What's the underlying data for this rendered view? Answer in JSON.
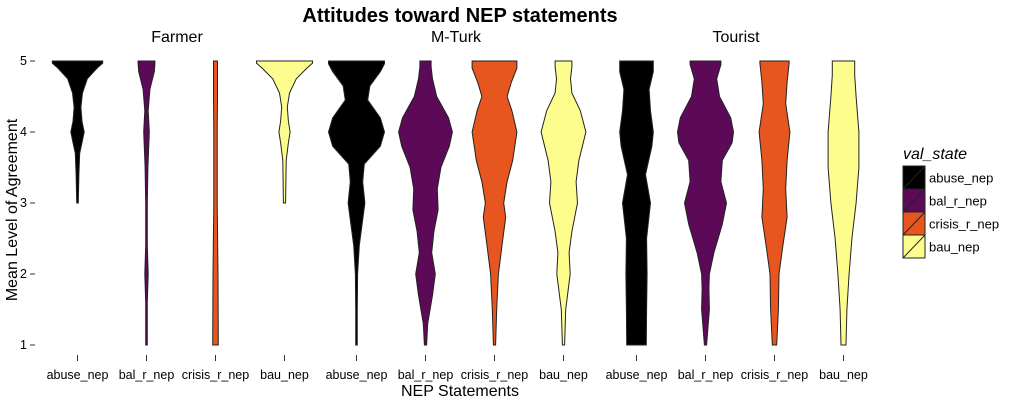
{
  "chart_data": {
    "type": "violin",
    "title": "Attitudes toward NEP statements",
    "xlabel": "NEP Statements",
    "ylabel": "Mean Level of Agreement",
    "ylim": [
      1,
      5
    ],
    "yticks": [
      "1",
      "2",
      "3",
      "4",
      "5"
    ],
    "categories": [
      "abuse_nep",
      "bal_r_nep",
      "crisis_r_nep",
      "bau_nep"
    ],
    "legend": {
      "title": "val_state",
      "position": "right",
      "items": [
        {
          "label": "abuse_nep",
          "color": "#000000"
        },
        {
          "label": "bal_r_nep",
          "color": "#5c0a57"
        },
        {
          "label": "crisis_r_nep",
          "color": "#e8561f"
        },
        {
          "label": "bau_nep",
          "color": "#fdfd8e"
        }
      ]
    },
    "facets": [
      {
        "name": "Farmer",
        "violins": [
          {
            "category": "abuse_nep",
            "range": [
              3,
              5
            ],
            "profile": [
              [
                3,
                0.03
              ],
              [
                3.4,
                0.05
              ],
              [
                3.7,
                0.08
              ],
              [
                3.85,
                0.16
              ],
              [
                4,
                0.24
              ],
              [
                4.15,
                0.16
              ],
              [
                4.35,
                0.12
              ],
              [
                4.55,
                0.18
              ],
              [
                4.75,
                0.35
              ],
              [
                4.9,
                0.7
              ],
              [
                4.97,
                0.9
              ],
              [
                5,
                0.9
              ]
            ]
          },
          {
            "category": "bal_r_nep",
            "range": [
              1,
              5
            ],
            "profile": [
              [
                1,
                0.01
              ],
              [
                1.6,
                0.03
              ],
              [
                2,
                0.06
              ],
              [
                2.4,
                0.03
              ],
              [
                3,
                0.03
              ],
              [
                3.5,
                0.05
              ],
              [
                4,
                0.1
              ],
              [
                4.3,
                0.06
              ],
              [
                4.6,
                0.12
              ],
              [
                4.85,
                0.28
              ],
              [
                4.96,
                0.3
              ],
              [
                5,
                0.3
              ]
            ]
          },
          {
            "category": "crisis_r_nep",
            "range": [
              1,
              5
            ],
            "profile": [
              [
                1,
                0.1
              ],
              [
                2,
                0.09
              ],
              [
                3,
                0.06
              ],
              [
                4,
                0.06
              ],
              [
                4.5,
                0.07
              ],
              [
                5,
                0.07
              ]
            ]
          },
          {
            "category": "bau_nep",
            "range": [
              3,
              5
            ],
            "profile": [
              [
                3,
                0.04
              ],
              [
                3.3,
                0.05
              ],
              [
                3.6,
                0.06
              ],
              [
                3.85,
                0.14
              ],
              [
                4,
                0.2
              ],
              [
                4.15,
                0.14
              ],
              [
                4.35,
                0.1
              ],
              [
                4.55,
                0.18
              ],
              [
                4.75,
                0.42
              ],
              [
                4.9,
                0.8
              ],
              [
                4.97,
                1
              ],
              [
                5,
                1
              ]
            ]
          }
        ]
      },
      {
        "name": "M-Turk",
        "violins": [
          {
            "category": "abuse_nep",
            "range": [
              1,
              5
            ],
            "profile": [
              [
                1,
                0.02
              ],
              [
                1.5,
                0.03
              ],
              [
                2,
                0.04
              ],
              [
                2.4,
                0.1
              ],
              [
                2.7,
                0.2
              ],
              [
                3,
                0.3
              ],
              [
                3.3,
                0.22
              ],
              [
                3.55,
                0.28
              ],
              [
                3.8,
                0.85
              ],
              [
                4,
                1
              ],
              [
                4.2,
                0.85
              ],
              [
                4.45,
                0.4
              ],
              [
                4.65,
                0.48
              ],
              [
                4.85,
                0.85
              ],
              [
                4.96,
                1
              ],
              [
                5,
                1
              ]
            ]
          },
          {
            "category": "bal_r_nep",
            "range": [
              1,
              5
            ],
            "profile": [
              [
                1,
                0.04
              ],
              [
                1.3,
                0.08
              ],
              [
                1.7,
                0.25
              ],
              [
                2,
                0.35
              ],
              [
                2.3,
                0.22
              ],
              [
                2.6,
                0.3
              ],
              [
                2.9,
                0.45
              ],
              [
                3.2,
                0.42
              ],
              [
                3.5,
                0.55
              ],
              [
                3.8,
                0.85
              ],
              [
                4,
                0.96
              ],
              [
                4.2,
                0.82
              ],
              [
                4.5,
                0.4
              ],
              [
                4.75,
                0.25
              ],
              [
                4.92,
                0.2
              ],
              [
                5,
                0.2
              ]
            ]
          },
          {
            "category": "crisis_r_nep",
            "range": [
              1,
              5
            ],
            "profile": [
              [
                1,
                0.04
              ],
              [
                1.5,
                0.08
              ],
              [
                2,
                0.14
              ],
              [
                2.5,
                0.3
              ],
              [
                2.8,
                0.4
              ],
              [
                3,
                0.33
              ],
              [
                3.3,
                0.45
              ],
              [
                3.6,
                0.65
              ],
              [
                4,
                0.8
              ],
              [
                4.3,
                0.62
              ],
              [
                4.5,
                0.45
              ],
              [
                4.7,
                0.6
              ],
              [
                4.9,
                0.8
              ],
              [
                5,
                0.8
              ]
            ]
          },
          {
            "category": "bau_nep",
            "range": [
              1,
              5
            ],
            "profile": [
              [
                1,
                0.04
              ],
              [
                1.5,
                0.08
              ],
              [
                2,
                0.24
              ],
              [
                2.3,
                0.2
              ],
              [
                2.6,
                0.3
              ],
              [
                3,
                0.5
              ],
              [
                3.3,
                0.45
              ],
              [
                3.6,
                0.55
              ],
              [
                4,
                0.8
              ],
              [
                4.3,
                0.6
              ],
              [
                4.55,
                0.3
              ],
              [
                4.75,
                0.25
              ],
              [
                4.92,
                0.3
              ],
              [
                5,
                0.3
              ]
            ]
          }
        ]
      },
      {
        "name": "Tourist",
        "violins": [
          {
            "category": "abuse_nep",
            "range": [
              1,
              5
            ],
            "profile": [
              [
                1,
                0.35
              ],
              [
                1.5,
                0.36
              ],
              [
                2,
                0.38
              ],
              [
                2.5,
                0.36
              ],
              [
                3,
                0.5
              ],
              [
                3.4,
                0.32
              ],
              [
                3.8,
                0.55
              ],
              [
                4,
                0.6
              ],
              [
                4.3,
                0.5
              ],
              [
                4.6,
                0.45
              ],
              [
                4.85,
                0.6
              ],
              [
                5,
                0.6
              ]
            ]
          },
          {
            "category": "bal_r_nep",
            "range": [
              1,
              5
            ],
            "profile": [
              [
                1,
                0.04
              ],
              [
                1.2,
                0.08
              ],
              [
                1.5,
                0.14
              ],
              [
                1.8,
                0.12
              ],
              [
                2,
                0.14
              ],
              [
                2.3,
                0.3
              ],
              [
                2.7,
                0.6
              ],
              [
                3,
                0.75
              ],
              [
                3.3,
                0.55
              ],
              [
                3.6,
                0.6
              ],
              [
                3.85,
                0.95
              ],
              [
                4,
                1
              ],
              [
                4.2,
                0.9
              ],
              [
                4.5,
                0.5
              ],
              [
                4.75,
                0.4
              ],
              [
                4.95,
                0.55
              ],
              [
                5,
                0.55
              ]
            ]
          },
          {
            "category": "crisis_r_nep",
            "range": [
              1,
              5
            ],
            "profile": [
              [
                1,
                0.08
              ],
              [
                1.5,
                0.14
              ],
              [
                2,
                0.16
              ],
              [
                2.4,
                0.3
              ],
              [
                2.8,
                0.45
              ],
              [
                3.2,
                0.4
              ],
              [
                3.6,
                0.45
              ],
              [
                4,
                0.55
              ],
              [
                4.4,
                0.4
              ],
              [
                4.7,
                0.45
              ],
              [
                4.97,
                0.52
              ],
              [
                5,
                0.52
              ]
            ]
          },
          {
            "category": "bau_nep",
            "range": [
              1,
              5
            ],
            "profile": [
              [
                1,
                0.09
              ],
              [
                1.5,
                0.12
              ],
              [
                2,
                0.2
              ],
              [
                2.5,
                0.3
              ],
              [
                3,
                0.45
              ],
              [
                3.5,
                0.55
              ],
              [
                4,
                0.55
              ],
              [
                4.5,
                0.45
              ],
              [
                4.8,
                0.4
              ],
              [
                5,
                0.4
              ]
            ]
          }
        ]
      }
    ]
  }
}
